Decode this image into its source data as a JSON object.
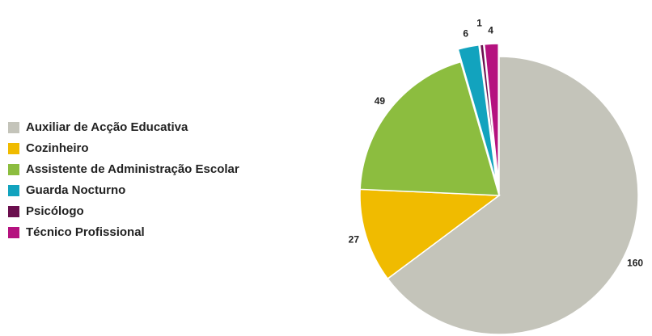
{
  "chart_data": {
    "type": "pie",
    "categories": [
      "Auxiliar de Acção Educativa",
      "Cozinheiro",
      "Assistente de Administração Escolar",
      "Guarda Nocturno",
      "Psicólogo",
      "Técnico Profissional"
    ],
    "values": [
      160,
      27,
      49,
      6,
      1,
      4
    ],
    "colors": [
      "#c4c4ba",
      "#f0bb00",
      "#8cbd3f",
      "#12a3be",
      "#6b0f4e",
      "#b5127f"
    ],
    "legend": "left"
  }
}
